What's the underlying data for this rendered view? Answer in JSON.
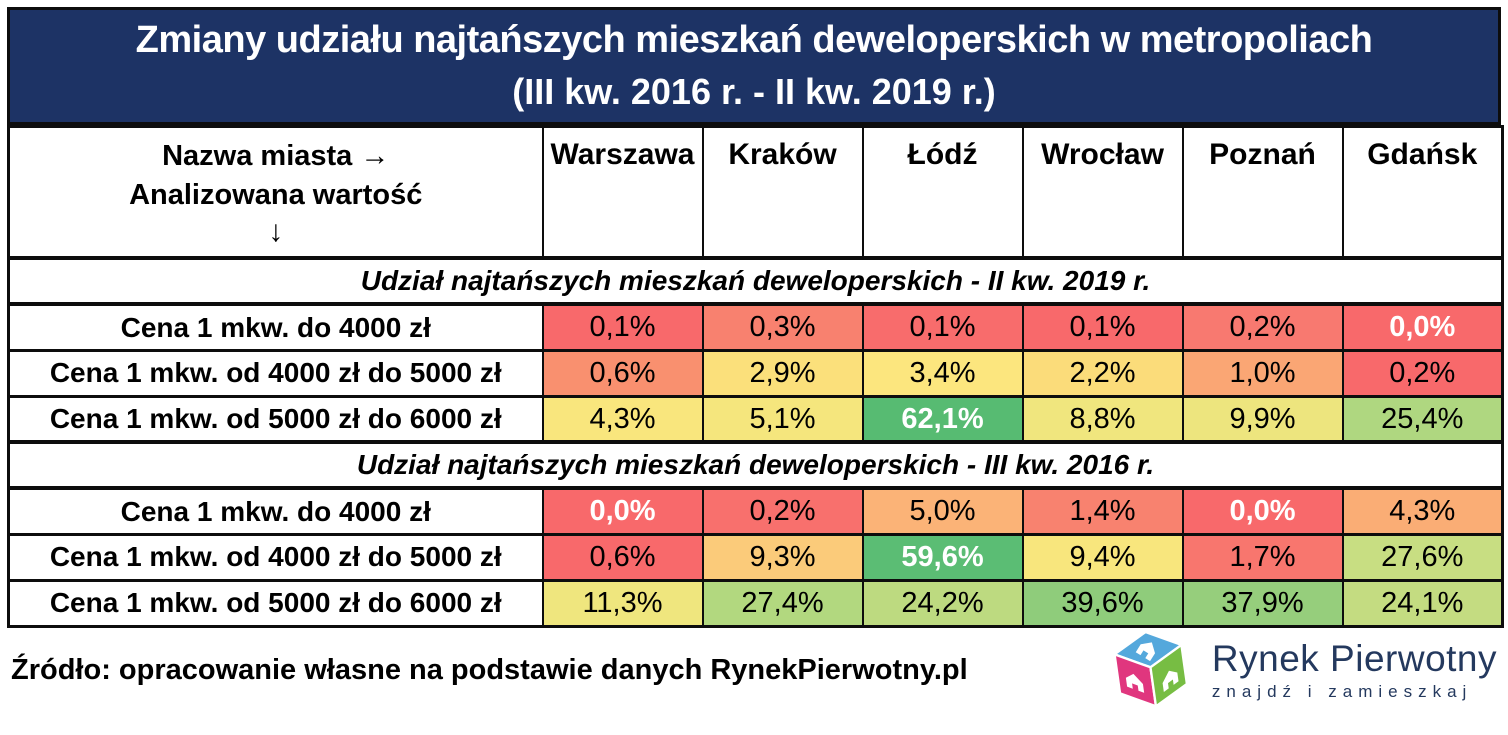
{
  "title": {
    "line1": "Zmiany udziału najtańszych mieszkań deweloperskich w metropoliach",
    "line2": "(III kw. 2016 r. - II kw. 2019 r.)"
  },
  "colors": {
    "title_bg": "#1d3365",
    "border": "#0d0d0d",
    "heat_red": "#F8696B",
    "heat_yellow": "#F8E67D",
    "heat_green": "#57BB72",
    "logo_blue": "#54a8dc",
    "logo_pink": "#e0367e",
    "logo_green": "#77bd43",
    "logo_navy": "#24395e"
  },
  "table": {
    "corner": {
      "line1": "Nazwa miasta →",
      "line2": "Analizowana wartość",
      "arrow": "↓"
    },
    "city_columns": [
      "Warszawa",
      "Kraków",
      "Łódź",
      "Wrocław",
      "Poznań",
      "Gdańsk"
    ],
    "sections": [
      {
        "header": "Udział najtańszych mieszkań deweloperskich - II kw. 2019 r.",
        "rows": [
          {
            "label": "Cena 1 mkw. do 4000 zł",
            "cells": [
              {
                "v": "0,1%",
                "bg": "#F8696B",
                "em": false
              },
              {
                "v": "0,3%",
                "bg": "#F8816F",
                "em": false
              },
              {
                "v": "0,1%",
                "bg": "#F86C6C",
                "em": false
              },
              {
                "v": "0,1%",
                "bg": "#F8696B",
                "em": false
              },
              {
                "v": "0,2%",
                "bg": "#F87970",
                "em": false
              },
              {
                "v": "0,0%",
                "bg": "#F8696B",
                "em": true
              }
            ]
          },
          {
            "label": "Cena 1 mkw. od 4000 zł do 5000 zł",
            "cells": [
              {
                "v": "0,6%",
                "bg": "#F9906F",
                "em": false
              },
              {
                "v": "2,9%",
                "bg": "#FBE07B",
                "em": false
              },
              {
                "v": "3,4%",
                "bg": "#FCE67E",
                "em": false
              },
              {
                "v": "2,2%",
                "bg": "#FBDC7A",
                "em": false
              },
              {
                "v": "1,0%",
                "bg": "#FAA674",
                "em": false
              },
              {
                "v": "0,2%",
                "bg": "#F8696B",
                "em": false
              }
            ]
          },
          {
            "label": "Cena 1 mkw. od 5000 zł do 6000 zł",
            "cells": [
              {
                "v": "4,3%",
                "bg": "#F9E67D",
                "em": false
              },
              {
                "v": "5,1%",
                "bg": "#F5E67D",
                "em": false
              },
              {
                "v": "62,1%",
                "bg": "#57BB72",
                "em": true
              },
              {
                "v": "8,8%",
                "bg": "#F0E67E",
                "em": false
              },
              {
                "v": "9,9%",
                "bg": "#EDE57E",
                "em": false
              },
              {
                "v": "25,4%",
                "bg": "#AFD780",
                "em": false
              }
            ]
          }
        ]
      },
      {
        "header": "Udział najtańszych mieszkań deweloperskich - III kw. 2016 r.",
        "rows": [
          {
            "label": "Cena 1 mkw. do 4000 zł",
            "cells": [
              {
                "v": "0,0%",
                "bg": "#F8696B",
                "em": true
              },
              {
                "v": "0,2%",
                "bg": "#F8706D",
                "em": false
              },
              {
                "v": "5,0%",
                "bg": "#FBB377",
                "em": false
              },
              {
                "v": "1,4%",
                "bg": "#F8826F",
                "em": false
              },
              {
                "v": "0,0%",
                "bg": "#F8696B",
                "em": true
              },
              {
                "v": "4,3%",
                "bg": "#FAAD75",
                "em": false
              }
            ]
          },
          {
            "label": "Cena 1 mkw. od 4000 zł do 5000 zł",
            "cells": [
              {
                "v": "0,6%",
                "bg": "#F8696B",
                "em": false
              },
              {
                "v": "9,3%",
                "bg": "#FBCB7A",
                "em": false
              },
              {
                "v": "59,6%",
                "bg": "#5BBD74",
                "em": true
              },
              {
                "v": "9,4%",
                "bg": "#F8E67D",
                "em": false
              },
              {
                "v": "1,7%",
                "bg": "#F8766E",
                "em": false
              },
              {
                "v": "27,6%",
                "bg": "#C8DE82",
                "em": false
              }
            ]
          },
          {
            "label": "Cena 1 mkw. od 5000 zł do 6000 zł",
            "cells": [
              {
                "v": "11,3%",
                "bg": "#EFE67E",
                "em": false
              },
              {
                "v": "27,4%",
                "bg": "#B2D87F",
                "em": false
              },
              {
                "v": "24,2%",
                "bg": "#BDDA80",
                "em": false
              },
              {
                "v": "39,6%",
                "bg": "#8FCC7B",
                "em": false
              },
              {
                "v": "37,9%",
                "bg": "#96CE7C",
                "em": false
              },
              {
                "v": "24,1%",
                "bg": "#C4DC81",
                "em": false
              }
            ]
          }
        ]
      }
    ]
  },
  "footer": {
    "source": "Źródło: opracowanie własne na podstawie danych RynekPierwotny.pl",
    "logo": {
      "brand": "Rynek Pierwotny",
      "tagline": "znajdź i zamieszkaj"
    }
  },
  "chart_data": {
    "type": "heatmap",
    "title": "Zmiany udziału najtańszych mieszkań deweloperskich w metropoliach (III kw. 2016 r. - II kw. 2019 r.)",
    "columns": [
      "Warszawa",
      "Kraków",
      "Łódź",
      "Wrocław",
      "Poznań",
      "Gdańsk"
    ],
    "sections": [
      {
        "name": "Udział najtańszych mieszkań deweloperskich - II kw. 2019 r.",
        "rows": [
          {
            "label": "Cena 1 mkw. do 4000 zł",
            "values_pct": [
              0.1,
              0.3,
              0.1,
              0.1,
              0.2,
              0.0
            ]
          },
          {
            "label": "Cena 1 mkw. od 4000 zł do 5000 zł",
            "values_pct": [
              0.6,
              2.9,
              3.4,
              2.2,
              1.0,
              0.2
            ]
          },
          {
            "label": "Cena 1 mkw. od 5000 zł do 6000 zł",
            "values_pct": [
              4.3,
              5.1,
              62.1,
              8.8,
              9.9,
              25.4
            ]
          }
        ]
      },
      {
        "name": "Udział najtańszych mieszkań deweloperskich - III kw. 2016 r.",
        "rows": [
          {
            "label": "Cena 1 mkw. do 4000 zł",
            "values_pct": [
              0.0,
              0.2,
              5.0,
              1.4,
              0.0,
              4.3
            ]
          },
          {
            "label": "Cena 1 mkw. od 4000 zł do 5000 zł",
            "values_pct": [
              0.6,
              9.3,
              59.6,
              9.4,
              1.7,
              27.6
            ]
          },
          {
            "label": "Cena 1 mkw. od 5000 zł do 6000 zł",
            "values_pct": [
              11.3,
              27.4,
              24.2,
              39.6,
              37.9,
              24.1
            ]
          }
        ]
      }
    ],
    "color_scale": "red (low) → yellow (mid) → green (high)",
    "source": "Źródło: opracowanie własne na podstawie danych RynekPierwotny.pl"
  }
}
